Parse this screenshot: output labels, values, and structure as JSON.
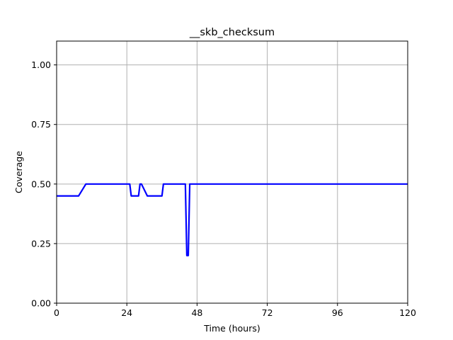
{
  "chart_data": {
    "type": "line",
    "title": "__skb_checksum",
    "xlabel": "Time (hours)",
    "ylabel": "Coverage",
    "xlim": [
      0,
      120
    ],
    "ylim": [
      0,
      1.1
    ],
    "xticks": [
      0,
      24,
      48,
      72,
      96,
      120
    ],
    "xtick_labels": [
      "0",
      "24",
      "48",
      "72",
      "96",
      "120"
    ],
    "yticks": [
      0.0,
      0.25,
      0.5,
      0.75,
      1.0
    ],
    "ytick_labels": [
      "0.00",
      "0.25",
      "0.50",
      "0.75",
      "1.00"
    ],
    "grid": true,
    "series": [
      {
        "color": "#0000ff",
        "x": [
          0,
          7.5,
          10,
          25,
          25.5,
          28,
          28.5,
          29,
          31,
          36,
          36.5,
          44,
          44.5,
          45,
          45.5,
          46,
          120
        ],
        "y": [
          0.45,
          0.45,
          0.5,
          0.5,
          0.45,
          0.45,
          0.5,
          0.5,
          0.45,
          0.45,
          0.5,
          0.5,
          0.2,
          0.2,
          0.5,
          0.5,
          0.5
        ]
      }
    ]
  }
}
